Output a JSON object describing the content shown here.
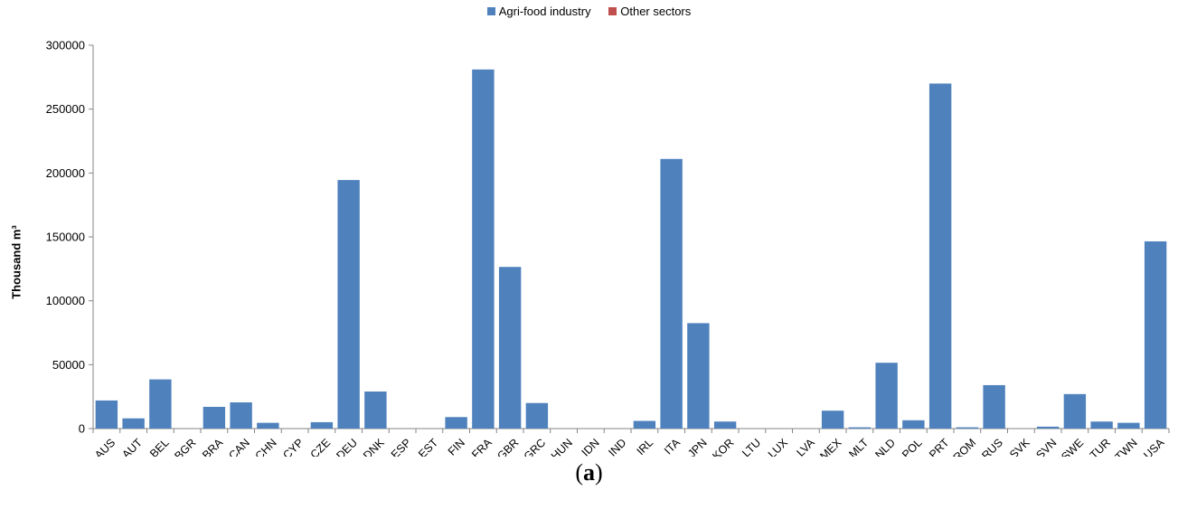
{
  "chart_data": {
    "type": "bar",
    "categories": [
      "AUS",
      "AUT",
      "BEL",
      "BGR",
      "BRA",
      "CAN",
      "CHN",
      "CYP",
      "CZE",
      "DEU",
      "DNK",
      "ESP",
      "EST",
      "FIN",
      "FRA",
      "GBR",
      "GRC",
      "HUN",
      "IDN",
      "IND",
      "IRL",
      "ITA",
      "JPN",
      "KOR",
      "LTU",
      "LUX",
      "LVA",
      "MEX",
      "MLT",
      "NLD",
      "POL",
      "PRT",
      "ROM",
      "RUS",
      "SVK",
      "SVN",
      "SWE",
      "TUR",
      "TWN",
      "USA"
    ],
    "series": [
      {
        "name": "Agri-food industry",
        "color": "#4F81BD",
        "values": [
          22000,
          8000,
          38500,
          0,
          17000,
          20500,
          4500,
          0,
          5000,
          194500,
          29000,
          0,
          0,
          9000,
          281000,
          126500,
          20000,
          0,
          0,
          0,
          6000,
          211000,
          82500,
          5500,
          0,
          0,
          0,
          14000,
          1000,
          51500,
          6500,
          270000,
          1000,
          34000,
          0,
          1500,
          27000,
          5500,
          4500,
          146500
        ]
      },
      {
        "name": "Other sectors",
        "color": "#C0504D",
        "values": [
          0,
          0,
          0,
          0,
          0,
          0,
          0,
          0,
          0,
          0,
          0,
          0,
          0,
          0,
          0,
          0,
          0,
          0,
          0,
          0,
          0,
          0,
          0,
          0,
          0,
          0,
          0,
          0,
          0,
          0,
          0,
          0,
          0,
          0,
          0,
          0,
          0,
          0,
          0,
          0
        ]
      }
    ],
    "title": "",
    "xlabel": "",
    "ylabel": "Thousand m³",
    "ylim": [
      0,
      300000
    ],
    "yticks": [
      "0",
      "50000",
      "100000",
      "150000",
      "200000",
      "250000",
      "300000"
    ],
    "legend_position": "top-center",
    "grid": false
  },
  "panel_label": "(a)",
  "panel_label_parts": {
    "open": "(",
    "letter": "a",
    "close": ")"
  }
}
